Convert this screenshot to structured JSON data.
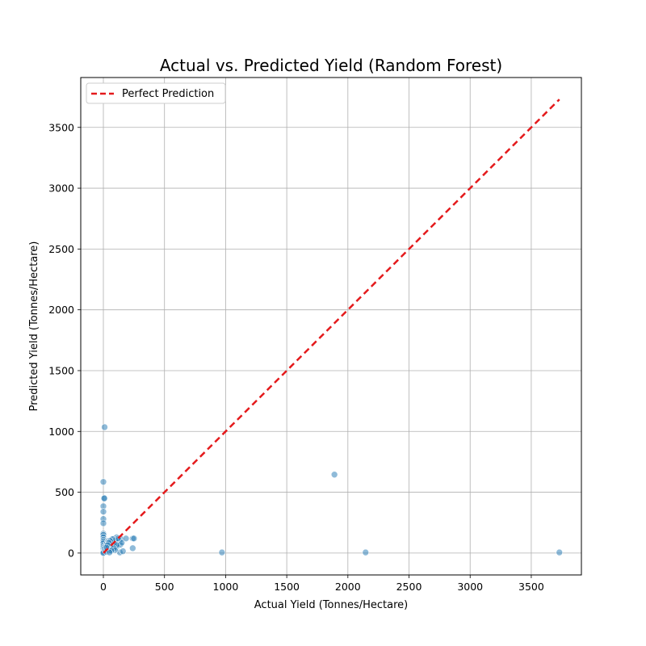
{
  "chart_data": {
    "type": "scatter",
    "title": "Actual vs. Predicted Yield (Random Forest)",
    "xlabel": "Actual Yield (Tonnes/Hectare)",
    "ylabel": "Predicted Yield (Tonnes/Hectare)",
    "xlim": [
      -185,
      3910
    ],
    "ylim": [
      -180,
      3910
    ],
    "xticks": [
      0,
      500,
      1000,
      1500,
      2000,
      2500,
      3000,
      3500
    ],
    "yticks": [
      0,
      500,
      1000,
      1500,
      2000,
      2500,
      3000,
      3500
    ],
    "xtick_labels": [
      "0",
      "500",
      "1000",
      "1500",
      "2000",
      "2500",
      "3000",
      "3500"
    ],
    "ytick_labels": [
      "0",
      "500",
      "1000",
      "1500",
      "2000",
      "2500",
      "3000",
      "3500"
    ],
    "grid": true,
    "legend": {
      "position": "top-left",
      "entries": [
        "Perfect Prediction"
      ]
    },
    "colors": {
      "points": "#1f77b4",
      "reference_line": "#e41a1c"
    },
    "reference_line": {
      "name": "Perfect Prediction",
      "x": [
        0,
        3730
      ],
      "y": [
        0,
        3730
      ]
    },
    "series": [
      {
        "name": "",
        "points": [
          [
            10,
            1035
          ],
          [
            0,
            585
          ],
          [
            0,
            385
          ],
          [
            0,
            340
          ],
          [
            0,
            280
          ],
          [
            0,
            245
          ],
          [
            5,
            450
          ],
          [
            8,
            450
          ],
          [
            0,
            160
          ],
          [
            0,
            150
          ],
          [
            0,
            130
          ],
          [
            0,
            110
          ],
          [
            0,
            95
          ],
          [
            0,
            80
          ],
          [
            0,
            60
          ],
          [
            0,
            45
          ],
          [
            0,
            30
          ],
          [
            0,
            15
          ],
          [
            0,
            5
          ],
          [
            0,
            0
          ],
          [
            10,
            40
          ],
          [
            15,
            20
          ],
          [
            20,
            60
          ],
          [
            25,
            10
          ],
          [
            30,
            80
          ],
          [
            35,
            35
          ],
          [
            40,
            100
          ],
          [
            45,
            50
          ],
          [
            50,
            20
          ],
          [
            55,
            70
          ],
          [
            60,
            40
          ],
          [
            65,
            110
          ],
          [
            70,
            60
          ],
          [
            75,
            30
          ],
          [
            80,
            90
          ],
          [
            85,
            55
          ],
          [
            90,
            120
          ],
          [
            95,
            75
          ],
          [
            100,
            45
          ],
          [
            105,
            100
          ],
          [
            110,
            130
          ],
          [
            115,
            80
          ],
          [
            120,
            60
          ],
          [
            125,
            110
          ],
          [
            130,
            95
          ],
          [
            135,
            5
          ],
          [
            140,
            70
          ],
          [
            145,
            115
          ],
          [
            150,
            85
          ],
          [
            160,
            15
          ],
          [
            185,
            120
          ],
          [
            240,
            120
          ],
          [
            250,
            120
          ],
          [
            240,
            40
          ],
          [
            60,
            90
          ],
          [
            70,
            100
          ],
          [
            80,
            70
          ],
          [
            90,
            85
          ],
          [
            100,
            105
          ],
          [
            110,
            65
          ],
          [
            120,
            120
          ],
          [
            75,
            115
          ],
          [
            85,
            40
          ],
          [
            95,
            25
          ],
          [
            55,
            100
          ],
          [
            65,
            20
          ],
          [
            45,
            85
          ],
          [
            50,
            5
          ],
          [
            35,
            65
          ],
          [
            25,
            45
          ],
          [
            970,
            5
          ],
          [
            1890,
            645
          ],
          [
            2145,
            5
          ],
          [
            3730,
            5
          ]
        ]
      }
    ]
  }
}
